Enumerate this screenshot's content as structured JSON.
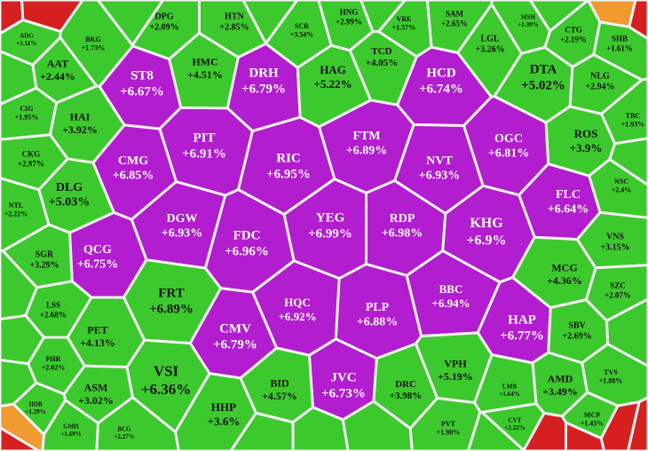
{
  "cells": [
    {
      "ticker": "ST8",
      "change": "+6.67%"
    },
    {
      "ticker": "DRH",
      "change": "+6.79%"
    },
    {
      "ticker": "HCD",
      "change": "+6.74%"
    },
    {
      "ticker": "PIT",
      "change": "+6.91%"
    },
    {
      "ticker": "FTM",
      "change": "+6.89%"
    },
    {
      "ticker": "OGC",
      "change": "+6.81%"
    },
    {
      "ticker": "CMG",
      "change": "+6.85%"
    },
    {
      "ticker": "RIC",
      "change": "+6.95%"
    },
    {
      "ticker": "NVT",
      "change": "+6.93%"
    },
    {
      "ticker": "FLC",
      "change": "+6.64%"
    },
    {
      "ticker": "DGW",
      "change": "+6.93%"
    },
    {
      "ticker": "YEG",
      "change": "+6.99%"
    },
    {
      "ticker": "RDP",
      "change": "+6.98%"
    },
    {
      "ticker": "KHG",
      "change": "+6.9%"
    },
    {
      "ticker": "FDC",
      "change": "+6.96%"
    },
    {
      "ticker": "QCG",
      "change": "+6.75%"
    },
    {
      "ticker": "HQC",
      "change": "+6.92%"
    },
    {
      "ticker": "BBC",
      "change": "+6.94%"
    },
    {
      "ticker": "PLP",
      "change": "+6.88%"
    },
    {
      "ticker": "HAP",
      "change": "+6.77%"
    },
    {
      "ticker": "CMV",
      "change": "+6.79%"
    },
    {
      "ticker": "JVC",
      "change": "+6.73%"
    },
    {
      "ticker": "FRT",
      "change": "+6.89%"
    },
    {
      "ticker": "VSI",
      "change": "+6.36%"
    },
    {
      "ticker": "DTA",
      "change": "+5.02%"
    },
    {
      "ticker": "HAG",
      "change": "+5.22%"
    },
    {
      "ticker": "DLG",
      "change": "+5.03%"
    },
    {
      "ticker": "HMC",
      "change": "+4.51%"
    },
    {
      "ticker": "TCD",
      "change": "+4.05%"
    },
    {
      "ticker": "HAI",
      "change": "+3.92%"
    },
    {
      "ticker": "AAT",
      "change": "+2.44%"
    },
    {
      "ticker": "ROS",
      "change": "+3.9%"
    },
    {
      "ticker": "PET",
      "change": "+4.13%"
    },
    {
      "ticker": "ASM",
      "change": "+3.02%"
    },
    {
      "ticker": "HHP",
      "change": "+3.6%"
    },
    {
      "ticker": "BID",
      "change": "+4.57%"
    },
    {
      "ticker": "DRC",
      "change": "+3.98%"
    },
    {
      "ticker": "VPH",
      "change": "+5.19%"
    },
    {
      "ticker": "AMD",
      "change": "+3.49%"
    },
    {
      "ticker": "MCG",
      "change": "+4.36%"
    },
    {
      "ticker": "SBV",
      "change": "+2.69%"
    },
    {
      "ticker": "VNS",
      "change": "+3.15%"
    },
    {
      "ticker": "NLG",
      "change": "+2.94%"
    },
    {
      "ticker": "LGL",
      "change": "+3.26%"
    },
    {
      "ticker": "CTG",
      "change": "+2.19%"
    },
    {
      "ticker": "SHB",
      "change": "+1.61%"
    },
    {
      "ticker": "TBC",
      "change": "+1.93%"
    },
    {
      "ticker": "NSC",
      "change": "+2.4%"
    },
    {
      "ticker": "SZC",
      "change": "+2.07%"
    },
    {
      "ticker": "TVS",
      "change": "+1.88%"
    },
    {
      "ticker": "MCP",
      "change": "+1.43%"
    },
    {
      "ticker": "SGR",
      "change": "+3.29%"
    },
    {
      "ticker": "LSS",
      "change": "+2.68%"
    },
    {
      "ticker": "PHR",
      "change": "+2.02%"
    },
    {
      "ticker": "CKG",
      "change": "+2.97%"
    },
    {
      "ticker": "CIG",
      "change": "+1.95%"
    },
    {
      "ticker": "NTL",
      "change": "+2.22%"
    },
    {
      "ticker": "DPG",
      "change": "+2.09%"
    },
    {
      "ticker": "HTN",
      "change": "+2.85%"
    },
    {
      "ticker": "HNG",
      "change": "+2.99%"
    },
    {
      "ticker": "SAM",
      "change": "+2.65%"
    },
    {
      "ticker": "SCR",
      "change": "+3.54%"
    },
    {
      "ticker": "VRE",
      "change": "+1.57%"
    },
    {
      "ticker": "PVT",
      "change": "+1.98%"
    },
    {
      "ticker": "LMB",
      "change": "+1.64%"
    },
    {
      "ticker": "CVT",
      "change": "+2.22%"
    },
    {
      "ticker": "GMH",
      "change": "+1.69%"
    },
    {
      "ticker": "HDB",
      "change": "+1.29%"
    },
    {
      "ticker": "BCG",
      "change": "+2.27%"
    },
    {
      "ticker": "ADG",
      "change": "+1.11%"
    },
    {
      "ticker": "BKG",
      "change": "+1.73%"
    },
    {
      "ticker": "MSH",
      "change": "+1.39%"
    }
  ]
}
